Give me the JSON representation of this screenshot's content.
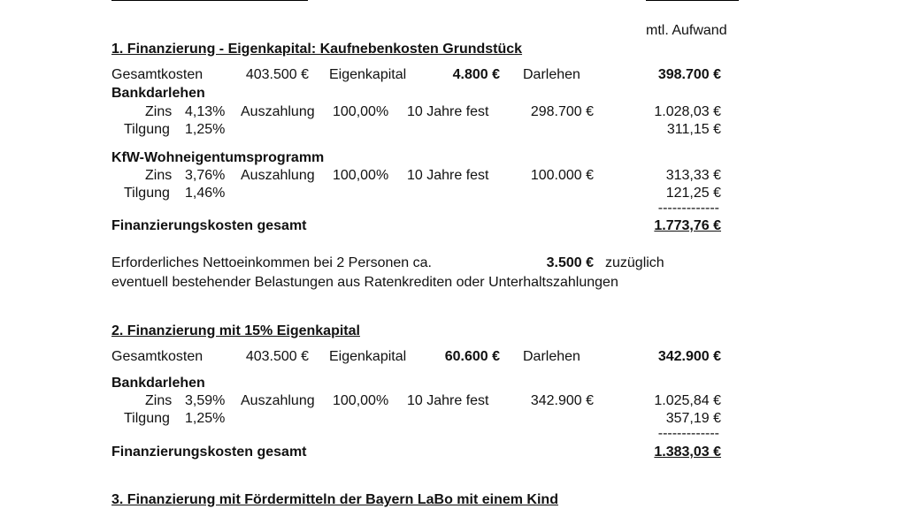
{
  "header": {
    "column_title": "mtl. Aufwand"
  },
  "sections": [
    {
      "title": "1. Finanzierung - Eigenkapital: Kaufnebenkosten Grundstück",
      "summary": {
        "gesamtkosten_label": "Gesamtkosten",
        "gesamtkosten": "403.500 €",
        "eigenkapital_label": "Eigenkapital",
        "eigenkapital": "4.800 €",
        "darlehen_label": "Darlehen",
        "darlehen": "398.700 €"
      },
      "loans": [
        {
          "name": "Bankdarlehen",
          "zins_label": "Zins",
          "zins": "4,13%",
          "auszahlung_label": "Auszahlung",
          "auszahlung": "100,00%",
          "laufzeit": "10 Jahre fest",
          "betrag": "298.700 €",
          "zins_monat": "1.028,03 €",
          "tilgung_label": "Tilgung",
          "tilgung": "1,25%",
          "tilgung_monat": "311,15 €"
        },
        {
          "name": "KfW-Wohneigentumsprogramm",
          "zins_label": "Zins",
          "zins": "3,76%",
          "auszahlung_label": "Auszahlung",
          "auszahlung": "100,00%",
          "laufzeit": "10 Jahre fest",
          "betrag": "100.000 €",
          "zins_monat": "313,33 €",
          "tilgung_label": "Tilgung",
          "tilgung": "1,46%",
          "tilgung_monat": "121,25 €"
        }
      ],
      "separator": "-------------",
      "total_label": "Finanzierungskosten gesamt",
      "total": "1.773,76 €"
    },
    {
      "title": "2. Finanzierung mit 15% Eigenkapital",
      "summary": {
        "gesamtkosten_label": "Gesamtkosten",
        "gesamtkosten": "403.500 €",
        "eigenkapital_label": "Eigenkapital",
        "eigenkapital": "60.600 €",
        "darlehen_label": "Darlehen",
        "darlehen": "342.900 €"
      },
      "loans": [
        {
          "name": "Bankdarlehen",
          "zins_label": "Zins",
          "zins": "3,59%",
          "auszahlung_label": "Auszahlung",
          "auszahlung": "100,00%",
          "laufzeit": "10 Jahre fest",
          "betrag": "342.900 €",
          "zins_monat": "1.025,84 €",
          "tilgung_label": "Tilgung",
          "tilgung": "1,25%",
          "tilgung_monat": "357,19 €"
        }
      ],
      "separator": "-------------",
      "total_label": "Finanzierungskosten gesamt",
      "total": "1.383,03 €"
    },
    {
      "title": "3. Finanzierung mit Fördermitteln der Bayern LaBo mit einem Kind"
    }
  ],
  "note": {
    "label": "Erforderliches Nettoeinkommen bei 2 Personen ca.",
    "amount": "3.500 €",
    "suffix": "zuzüglich",
    "line2": "eventuell bestehender Belastungen aus Ratenkrediten oder Unterhaltszahlungen"
  }
}
